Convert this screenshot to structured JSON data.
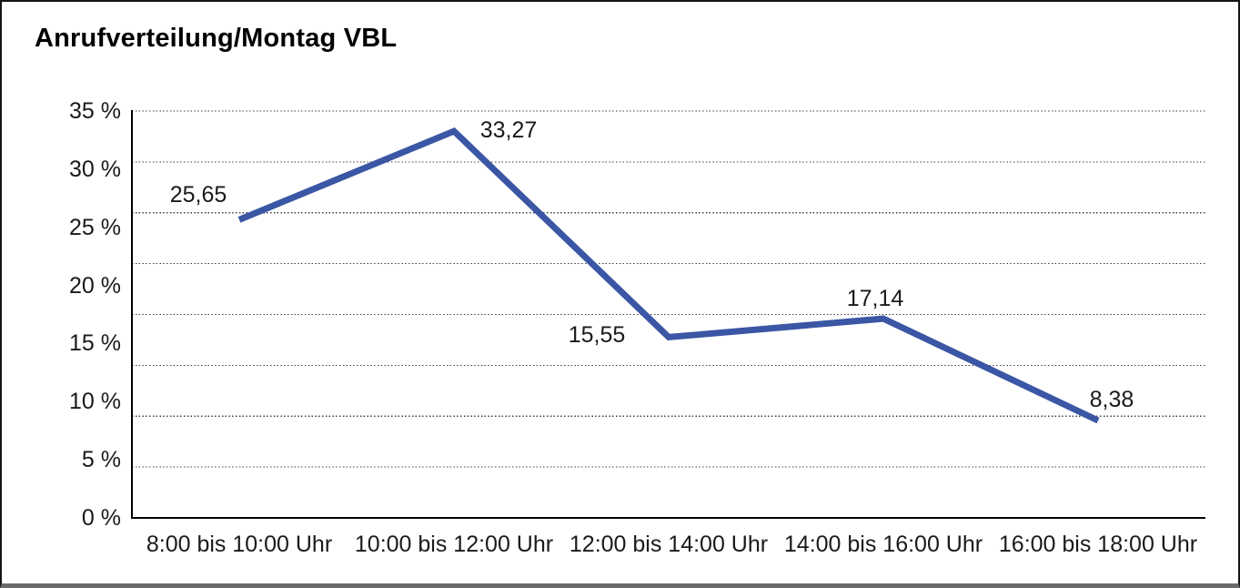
{
  "page": {
    "background_color": "#ffffff",
    "frame_border_color": "#161616",
    "frame_bottom_edge_color": "#6a6a6a"
  },
  "chart_data": {
    "type": "line",
    "title": "Anrufverteilung/Montag VBL",
    "categories": [
      "8:00 bis 10:00 Uhr",
      "10:00 bis 12:00 Uhr",
      "12:00 bis 14:00 Uhr",
      "14:00 bis 16:00 Uhr",
      "16:00 bis 18:00 Uhr"
    ],
    "series": [
      {
        "name": "Anrufverteilung Montag VBL",
        "values": [
          25.65,
          33.27,
          15.55,
          17.14,
          8.38
        ]
      }
    ],
    "point_labels": [
      "25,65",
      "33,27",
      "15,55",
      "17,14",
      "8,38"
    ],
    "xlabel": "",
    "ylabel": "",
    "ylim": [
      0,
      35
    ],
    "y_tick_step": 5,
    "y_tick_labels": [
      "0 %",
      "5 %",
      "10 %",
      "15 %",
      "20 %",
      "25 %",
      "30 %",
      "35 %"
    ],
    "grid": "horizontal dotted, 8 equal divisions, solid bottom axis",
    "grid_divisions": 8,
    "legend_position": "none",
    "line_color": "#3A56A4",
    "axis_color": "#000000",
    "grid_color": "#404040",
    "text_color": "#1a1a1a"
  }
}
